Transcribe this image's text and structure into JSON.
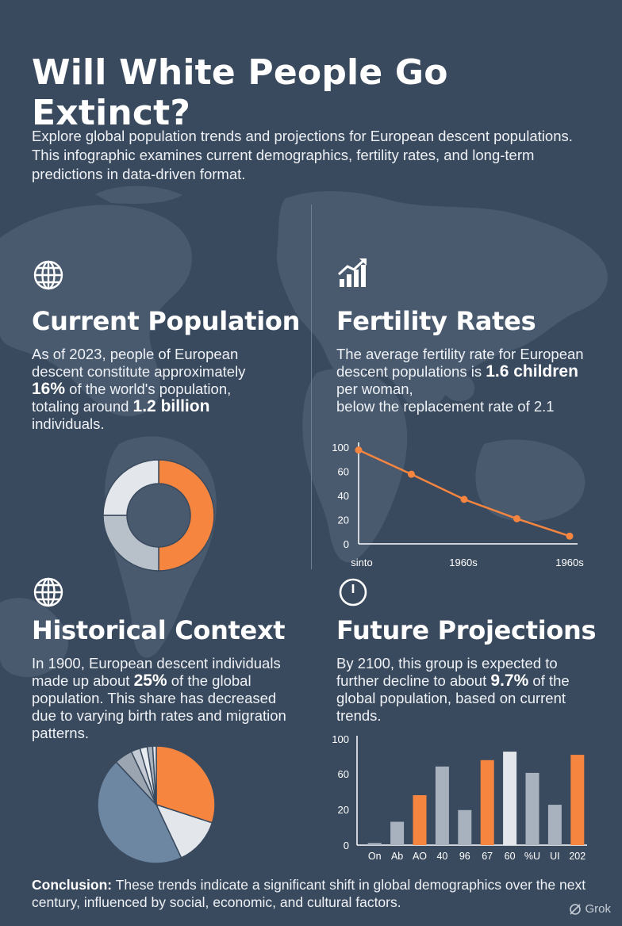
{
  "title": "Will White People Go Extinct?",
  "intro": "Explore global population trends and projections for European descent populations. This infographic examines current demographics, fertility rates, and long-term predictions in data-driven format.",
  "sections": {
    "current_population": {
      "icon": "globe-icon",
      "heading": "Current Population",
      "text_before": "As of 2023, people of European descent constitute approximately ",
      "highlight1": "16%",
      "text_mid": " of the world's population, totaling around ",
      "highlight2": "1.2 billion",
      "text_after": " individuals."
    },
    "fertility_rates": {
      "icon": "trending-chart-icon",
      "heading": "Fertility Rates",
      "text_before": "The average fertility rate for European descent populations is ",
      "highlight1": "1.6 children",
      "text_mid": " per woman,",
      "text_after": " below the replacement rate of 2.1"
    },
    "historical_context": {
      "icon": "globe-icon",
      "heading": "Historical Context",
      "text_before": "In 1900, European descent individuals made up about ",
      "highlight1": "25%",
      "text_after": " of the global population. This share has decreased due to varying birth rates and migration patterns."
    },
    "future_projections": {
      "icon": "clock-icon",
      "heading": "Future Projections",
      "text_before": "By 2100, this group is expected to further decline to about ",
      "highlight1": "9.7%",
      "text_after": " of the global population, based on current trends."
    }
  },
  "conclusion": {
    "label": "Conclusion:",
    "text": " These trends indicate a significant shift in global demographics over the next century, influenced by social, economic, and cultural factors."
  },
  "watermark": "Grok",
  "colors": {
    "background": "#3a4a5e",
    "accent": "#f5853f",
    "light_gray": "#dde2e9",
    "mid_gray": "#a8b2be",
    "steel_blue": "#6d87a3"
  },
  "chart_data": [
    {
      "type": "pie",
      "style": "donut",
      "slices": [
        {
          "value": 50,
          "color": "#f5853f"
        },
        {
          "value": 25,
          "color": "#b8c0ca"
        },
        {
          "value": 25,
          "color": "#e3e7ec"
        }
      ]
    },
    {
      "type": "line",
      "y_ticks": [
        "100",
        "60",
        "40",
        "20",
        "0"
      ],
      "x_tick_labels": [
        "sinto",
        "1960s",
        "1960s"
      ],
      "ylim": [
        0,
        100
      ],
      "values": [
        97,
        72,
        46,
        26,
        8
      ],
      "color": "#f5853f"
    },
    {
      "type": "pie",
      "slices": [
        {
          "value": 30,
          "color": "#f5853f"
        },
        {
          "value": 13,
          "color": "#e3e7ec"
        },
        {
          "value": 45,
          "color": "#6d87a3"
        },
        {
          "value": 5,
          "color": "#9aa5b1"
        },
        {
          "value": 2.5,
          "color": "#c3cad3"
        },
        {
          "value": 2,
          "color": "#e8ecf0"
        },
        {
          "value": 1.5,
          "color": "#aab4bf"
        },
        {
          "value": 1,
          "color": "#dde2e8"
        }
      ]
    },
    {
      "type": "bar",
      "y_ticks": [
        "100",
        "60",
        "20",
        "0"
      ],
      "ylim": [
        0,
        100
      ],
      "categories": [
        "On",
        "Ab",
        "AO",
        "40",
        "96",
        "67",
        "60",
        "%U",
        "UI",
        "202"
      ],
      "values": [
        2,
        22,
        47,
        74,
        33,
        80,
        88,
        68,
        38,
        85
      ],
      "colors": [
        "#a8b2be",
        "#a8b2be",
        "#f5853f",
        "#a8b2be",
        "#a8b2be",
        "#f5853f",
        "#e3e7ec",
        "#a8b2be",
        "#a8b2be",
        "#f5853f"
      ]
    }
  ]
}
